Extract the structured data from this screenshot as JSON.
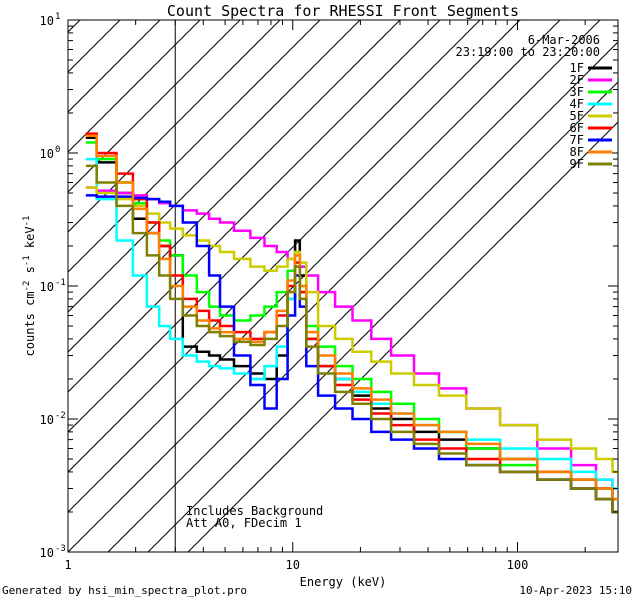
{
  "chart_data": {
    "type": "line",
    "title": "Count Spectra for RHESSI Front Segments",
    "date": "6-Mar-2006",
    "time_range": "23:19:00 to 23:20:00",
    "xlabel": "Energy (keV)",
    "ylabel_parts": {
      "a": "counts cm",
      "b": "-2",
      "c": " s",
      "d": "-1",
      "e": " keV",
      "f": "-1"
    },
    "xscale": "log",
    "yscale": "log",
    "xlim": [
      1,
      280
    ],
    "ylim": [
      0.001,
      10
    ],
    "xticks": [
      {
        "v": 1,
        "label": "1"
      },
      {
        "v": 10,
        "label": "10"
      },
      {
        "v": 100,
        "label": "100"
      }
    ],
    "yticks": [
      {
        "v": 0.001,
        "base": "10",
        "exp": "-3"
      },
      {
        "v": 0.01,
        "base": "10",
        "exp": "-2"
      },
      {
        "v": 0.1,
        "base": "10",
        "exp": "-1"
      },
      {
        "v": 1,
        "base": "10",
        "exp": "0"
      },
      {
        "v": 10,
        "base": "10",
        "exp": "1"
      }
    ],
    "hatched_region_max_energy": 3,
    "annotations": [
      "Includes Background",
      "Att A0, FDecim 1"
    ],
    "legend_position": "top-right",
    "series": [
      {
        "name": "1F",
        "color": "#000000",
        "x": [
          1.2,
          1.5,
          1.8,
          2.1,
          2.4,
          2.7,
          3.0,
          3.5,
          4,
          4.5,
          5,
          6,
          7,
          8,
          9,
          10,
          10.5,
          11,
          12,
          14,
          17,
          20,
          25,
          30,
          40,
          50,
          70,
          100,
          150,
          200,
          250,
          280
        ],
        "y": [
          1.3,
          0.85,
          0.5,
          0.32,
          0.25,
          0.2,
          0.17,
          0.035,
          0.032,
          0.03,
          0.028,
          0.025,
          0.022,
          0.02,
          0.03,
          0.08,
          0.22,
          0.12,
          0.04,
          0.025,
          0.02,
          0.015,
          0.012,
          0.01,
          0.008,
          0.007,
          0.006,
          0.005,
          0.004,
          0.0035,
          0.003,
          0.0025
        ]
      },
      {
        "name": "2F",
        "color": "#ff00ff",
        "x": [
          1.2,
          1.5,
          1.8,
          2.1,
          2.4,
          2.7,
          3.0,
          3.5,
          4,
          4.5,
          5,
          6,
          7,
          8,
          9,
          10,
          10.5,
          11,
          12,
          14,
          17,
          20,
          25,
          30,
          40,
          50,
          70,
          100,
          150,
          200,
          250,
          280
        ],
        "y": [
          0.55,
          0.52,
          0.5,
          0.48,
          0.45,
          0.42,
          0.4,
          0.37,
          0.35,
          0.32,
          0.3,
          0.26,
          0.23,
          0.2,
          0.18,
          0.16,
          0.15,
          0.14,
          0.12,
          0.09,
          0.07,
          0.055,
          0.04,
          0.03,
          0.022,
          0.017,
          0.012,
          0.009,
          0.006,
          0.0045,
          0.0035,
          0.003
        ]
      },
      {
        "name": "3F",
        "color": "#00ff00",
        "x": [
          1.2,
          1.5,
          1.8,
          2.1,
          2.4,
          2.7,
          3.0,
          3.5,
          4,
          4.5,
          5,
          6,
          7,
          8,
          9,
          10,
          10.5,
          11,
          12,
          14,
          17,
          20,
          25,
          30,
          40,
          50,
          70,
          100,
          150,
          200,
          250,
          280
        ],
        "y": [
          1.2,
          0.9,
          0.6,
          0.42,
          0.3,
          0.22,
          0.17,
          0.12,
          0.09,
          0.07,
          0.06,
          0.055,
          0.06,
          0.07,
          0.09,
          0.13,
          0.17,
          0.1,
          0.05,
          0.035,
          0.025,
          0.02,
          0.016,
          0.013,
          0.01,
          0.008,
          0.006,
          0.0045,
          0.0035,
          0.003,
          0.0025,
          0.002
        ]
      },
      {
        "name": "4F",
        "color": "#00ffff",
        "x": [
          1.2,
          1.5,
          1.8,
          2.1,
          2.4,
          2.7,
          3.0,
          3.5,
          4,
          4.5,
          5,
          6,
          7,
          8,
          9,
          10,
          10.5,
          11,
          12,
          14,
          17,
          20,
          25,
          30,
          40,
          50,
          70,
          100,
          150,
          200,
          250,
          280
        ],
        "y": [
          0.9,
          0.45,
          0.22,
          0.12,
          0.07,
          0.05,
          0.04,
          0.03,
          0.027,
          0.025,
          0.024,
          0.022,
          0.02,
          0.025,
          0.035,
          0.08,
          0.15,
          0.09,
          0.04,
          0.025,
          0.02,
          0.016,
          0.013,
          0.011,
          0.009,
          0.008,
          0.007,
          0.006,
          0.005,
          0.004,
          0.0035,
          0.003
        ]
      },
      {
        "name": "5F",
        "color": "#cccc00",
        "x": [
          1.2,
          1.5,
          1.8,
          2.1,
          2.4,
          2.7,
          3.0,
          3.5,
          4,
          4.5,
          5,
          6,
          7,
          8,
          9,
          10,
          10.5,
          11,
          12,
          14,
          17,
          20,
          25,
          30,
          40,
          50,
          70,
          100,
          150,
          200,
          250,
          280
        ],
        "y": [
          0.55,
          0.5,
          0.45,
          0.4,
          0.35,
          0.3,
          0.27,
          0.24,
          0.22,
          0.2,
          0.18,
          0.16,
          0.14,
          0.13,
          0.14,
          0.16,
          0.18,
          0.15,
          0.09,
          0.05,
          0.04,
          0.032,
          0.027,
          0.022,
          0.018,
          0.015,
          0.012,
          0.009,
          0.007,
          0.006,
          0.005,
          0.004
        ]
      },
      {
        "name": "6F",
        "color": "#ff0000",
        "x": [
          1.2,
          1.5,
          1.8,
          2.1,
          2.4,
          2.7,
          3.0,
          3.5,
          4,
          4.5,
          5,
          6,
          7,
          8,
          9,
          10,
          10.5,
          11,
          12,
          14,
          17,
          20,
          25,
          30,
          40,
          50,
          70,
          100,
          150,
          200,
          250,
          280
        ],
        "y": [
          1.4,
          1.0,
          0.7,
          0.45,
          0.3,
          0.2,
          0.12,
          0.08,
          0.065,
          0.055,
          0.05,
          0.045,
          0.04,
          0.045,
          0.06,
          0.1,
          0.15,
          0.09,
          0.04,
          0.025,
          0.018,
          0.014,
          0.011,
          0.009,
          0.007,
          0.006,
          0.005,
          0.004,
          0.0035,
          0.003,
          0.0025,
          0.002
        ]
      },
      {
        "name": "7F",
        "color": "#0000ff",
        "x": [
          1.2,
          1.5,
          1.8,
          2.1,
          2.4,
          2.7,
          3.0,
          3.5,
          4,
          4.5,
          5,
          6,
          7,
          8,
          9,
          10,
          10.5,
          11,
          12,
          14,
          17,
          20,
          25,
          30,
          40,
          50,
          70,
          100,
          150,
          200,
          250,
          280
        ],
        "y": [
          0.48,
          0.47,
          0.47,
          0.46,
          0.45,
          0.43,
          0.4,
          0.3,
          0.2,
          0.12,
          0.07,
          0.03,
          0.018,
          0.012,
          0.02,
          0.06,
          0.12,
          0.07,
          0.025,
          0.015,
          0.012,
          0.01,
          0.008,
          0.007,
          0.006,
          0.005,
          0.0045,
          0.004,
          0.0035,
          0.003,
          0.0025,
          0.002
        ]
      },
      {
        "name": "8F",
        "color": "#ff8000",
        "x": [
          1.2,
          1.5,
          1.8,
          2.1,
          2.4,
          2.7,
          3.0,
          3.5,
          4,
          4.5,
          5,
          6,
          7,
          8,
          9,
          10,
          10.5,
          11,
          12,
          14,
          17,
          20,
          25,
          30,
          40,
          50,
          70,
          100,
          150,
          200,
          250,
          280
        ],
        "y": [
          1.35,
          0.95,
          0.6,
          0.38,
          0.25,
          0.16,
          0.1,
          0.07,
          0.055,
          0.048,
          0.045,
          0.04,
          0.038,
          0.045,
          0.065,
          0.11,
          0.17,
          0.1,
          0.045,
          0.03,
          0.022,
          0.017,
          0.014,
          0.011,
          0.009,
          0.008,
          0.0065,
          0.005,
          0.004,
          0.0035,
          0.003,
          0.0025
        ]
      },
      {
        "name": "9F",
        "color": "#808000",
        "x": [
          1.2,
          1.5,
          1.8,
          2.1,
          2.4,
          2.7,
          3.0,
          3.5,
          4,
          4.5,
          5,
          6,
          7,
          8,
          9,
          10,
          10.5,
          11,
          12,
          14,
          17,
          20,
          25,
          30,
          40,
          50,
          70,
          100,
          150,
          200,
          250,
          280
        ],
        "y": [
          0.8,
          0.6,
          0.4,
          0.25,
          0.17,
          0.12,
          0.08,
          0.06,
          0.05,
          0.045,
          0.042,
          0.038,
          0.036,
          0.04,
          0.05,
          0.09,
          0.14,
          0.08,
          0.035,
          0.022,
          0.016,
          0.013,
          0.01,
          0.008,
          0.0065,
          0.0055,
          0.0045,
          0.004,
          0.0035,
          0.003,
          0.0025,
          0.002
        ]
      }
    ]
  },
  "footer": {
    "left": "Generated by hsi_min_spectra_plot.pro",
    "right": "10-Apr-2023 15:10"
  }
}
